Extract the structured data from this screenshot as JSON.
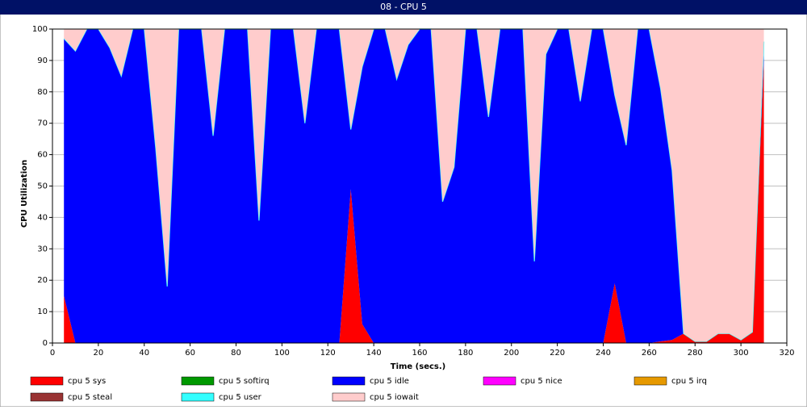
{
  "chart_data": {
    "type": "stacked-area",
    "title": "08 - CPU 5",
    "x_label": "Time (secs.)",
    "y_label": "CPU Utilization",
    "x": [
      5,
      10,
      15,
      20,
      25,
      30,
      35,
      40,
      45,
      50,
      55,
      60,
      65,
      70,
      75,
      80,
      85,
      90,
      95,
      100,
      105,
      110,
      115,
      120,
      125,
      130,
      135,
      140,
      145,
      150,
      155,
      160,
      165,
      170,
      175,
      180,
      185,
      190,
      195,
      200,
      205,
      210,
      215,
      220,
      225,
      230,
      235,
      240,
      245,
      250,
      255,
      260,
      265,
      270,
      275,
      280,
      285,
      290,
      295,
      300,
      305,
      310
    ],
    "series": [
      {
        "name": "cpu 5 sys",
        "color": "#ff0000",
        "values": [
          15,
          0,
          0,
          0,
          0,
          0,
          0,
          0,
          0,
          0,
          0,
          0,
          0,
          0,
          0,
          0,
          0,
          0,
          0,
          0,
          0,
          0,
          0,
          0,
          0,
          49,
          6,
          0,
          0,
          0,
          0,
          0,
          0,
          0,
          0,
          0,
          0,
          0,
          0,
          0,
          0,
          0,
          0,
          0,
          0,
          0,
          0,
          0,
          19,
          0,
          0,
          0,
          0.5,
          1,
          3,
          0.5,
          0.5,
          3,
          3,
          1,
          3.5,
          90
        ]
      },
      {
        "name": "cpu 5 softirq",
        "color": "#009900",
        "values": [
          0,
          0,
          0,
          0,
          0,
          0,
          0,
          0,
          0,
          0,
          0,
          0,
          0,
          0,
          0,
          0,
          0,
          0,
          0,
          0,
          0,
          0,
          0,
          0,
          0,
          0,
          0,
          0,
          0,
          0,
          0,
          0,
          0,
          0,
          0,
          0,
          0,
          0,
          0,
          0,
          0,
          0,
          0,
          0,
          0,
          0,
          0,
          0,
          0,
          0,
          0,
          0,
          0,
          0,
          0,
          0,
          0,
          0,
          0,
          0,
          0,
          0
        ]
      },
      {
        "name": "cpu 5 idle",
        "color": "#0000ff",
        "values": [
          82,
          93,
          100,
          100,
          94,
          85,
          100,
          100,
          62,
          18,
          100,
          100,
          100,
          66,
          100,
          100,
          100,
          39,
          100,
          100,
          100,
          70,
          100,
          100,
          100,
          19,
          82,
          100,
          100,
          84,
          95,
          100,
          100,
          45,
          56,
          100,
          100,
          72,
          100,
          100,
          100,
          26,
          92,
          100,
          100,
          77,
          100,
          100,
          60,
          63,
          100,
          100,
          80.5,
          54,
          0,
          0,
          0,
          0,
          0,
          0,
          0,
          6
        ]
      },
      {
        "name": "cpu 5 nice",
        "color": "#ff00ff",
        "values": [
          0,
          0,
          0,
          0,
          0,
          0,
          0,
          0,
          0,
          0,
          0,
          0,
          0,
          0,
          0,
          0,
          0,
          0,
          0,
          0,
          0,
          0,
          0,
          0,
          0,
          0,
          0,
          0,
          0,
          0,
          0,
          0,
          0,
          0,
          0,
          0,
          0,
          0,
          0,
          0,
          0,
          0,
          0,
          0,
          0,
          0,
          0,
          0,
          0,
          0,
          0,
          0,
          0,
          0,
          0,
          0,
          0,
          0,
          0,
          0,
          0,
          0
        ]
      },
      {
        "name": "cpu 5 irq",
        "color": "#e69900",
        "values": [
          0,
          0,
          0,
          0,
          0,
          0,
          0,
          0,
          0,
          0,
          0,
          0,
          0,
          0,
          0,
          0,
          0,
          0,
          0,
          0,
          0,
          0,
          0,
          0,
          0,
          0,
          0,
          0,
          0,
          0,
          0,
          0,
          0,
          0,
          0,
          0,
          0,
          0,
          0,
          0,
          0,
          0,
          0,
          0,
          0,
          0,
          0,
          0,
          0,
          0,
          0,
          0,
          0,
          0,
          0,
          0,
          0,
          0,
          0,
          0,
          0,
          0
        ]
      },
      {
        "name": "cpu 5 steal",
        "color": "#993333",
        "values": [
          0,
          0,
          0,
          0,
          0,
          0,
          0,
          0,
          0,
          0,
          0,
          0,
          0,
          0,
          0,
          0,
          0,
          0,
          0,
          0,
          0,
          0,
          0,
          0,
          0,
          0,
          0,
          0,
          0,
          0,
          0,
          0,
          0,
          0,
          0,
          0,
          0,
          0,
          0,
          0,
          0,
          0,
          0,
          0,
          0,
          0,
          0,
          0,
          0,
          0,
          0,
          0,
          0,
          0,
          0,
          0,
          0,
          0,
          0,
          0,
          0,
          0
        ]
      },
      {
        "name": "cpu 5 user",
        "color": "#33ffff",
        "values": [
          0,
          0,
          0,
          0,
          0,
          0,
          0,
          0,
          0,
          0,
          0,
          0,
          0,
          0,
          0,
          0,
          0,
          0,
          0,
          0,
          0,
          0,
          0,
          0,
          0,
          0,
          0,
          0,
          0,
          0,
          0,
          0,
          0,
          0,
          0,
          0,
          0,
          0,
          0,
          0,
          0,
          0,
          0,
          0,
          0,
          0,
          0,
          0,
          0,
          0,
          0,
          0,
          0,
          0,
          0,
          0,
          0,
          0,
          0,
          0,
          0,
          0
        ]
      },
      {
        "name": "cpu 5 iowait",
        "color": "#ffcccc",
        "values": [
          3,
          7,
          0,
          0,
          6,
          15,
          0,
          0,
          38,
          82,
          0,
          0,
          0,
          34,
          0,
          0,
          0,
          61,
          0,
          0,
          0,
          30,
          0,
          0,
          0,
          32,
          12,
          0,
          0,
          16,
          5,
          0,
          0,
          55,
          44,
          0,
          0,
          28,
          0,
          0,
          0,
          74,
          8,
          0,
          0,
          23,
          0,
          0,
          21,
          37,
          0,
          0,
          19,
          45,
          97,
          99.5,
          99.5,
          97,
          97,
          99,
          96.5,
          4
        ]
      }
    ],
    "xlim": [
      0,
      320
    ],
    "xticks": [
      0,
      20,
      40,
      60,
      80,
      100,
      120,
      140,
      160,
      180,
      200,
      220,
      240,
      260,
      280,
      300,
      320
    ],
    "ylim": [
      0,
      100
    ],
    "yticks": [
      0,
      10,
      20,
      30,
      40,
      50,
      60,
      70,
      80,
      90,
      100
    ],
    "grid": true
  }
}
